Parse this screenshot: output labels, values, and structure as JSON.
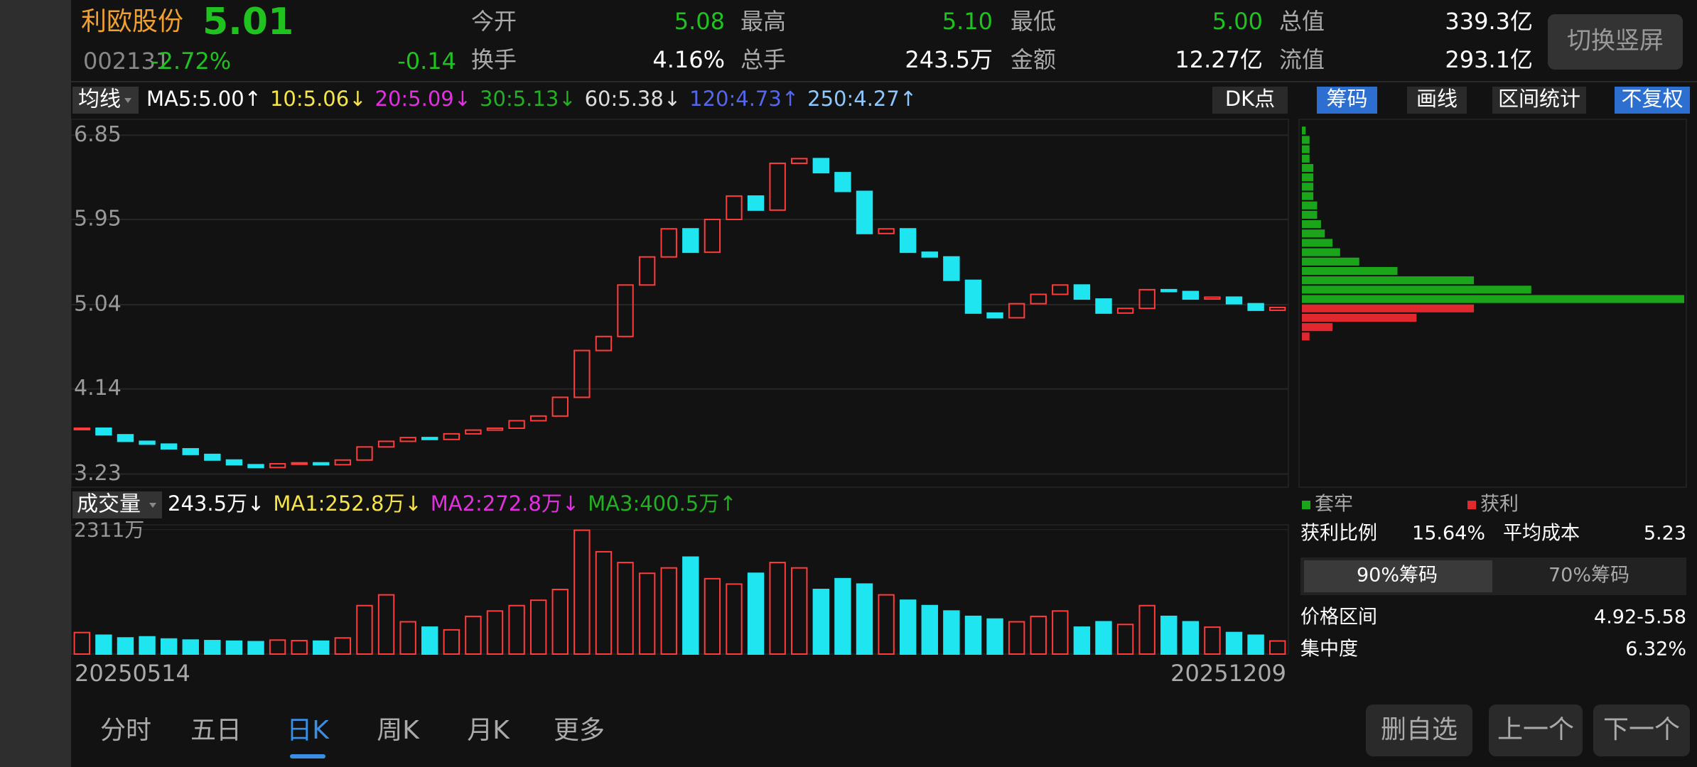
{
  "header": {
    "name": "利欧股份",
    "price": "5.01",
    "code": "002131",
    "change_pct": "-2.72%",
    "change": "-0.14",
    "stats": [
      {
        "label": "今开",
        "value": "5.08"
      },
      {
        "label": "最高",
        "value": "5.10"
      },
      {
        "label": "最低",
        "value": "5.00"
      },
      {
        "label": "总值",
        "value": "339.3亿"
      },
      {
        "label": "换手",
        "value": "4.16%"
      },
      {
        "label": "总手",
        "value": "243.5万"
      },
      {
        "label": "金额",
        "value": "12.27亿"
      },
      {
        "label": "流值",
        "value": "293.1亿"
      }
    ]
  },
  "orientation_button": "切换竖屏",
  "ma_bar": {
    "selector": "均线",
    "items": [
      {
        "text": "MA5:5.00↑",
        "color": "#ffffff"
      },
      {
        "text": "10:5.06↓",
        "color": "#f5e44a"
      },
      {
        "text": "20:5.09↓",
        "color": "#e030e0"
      },
      {
        "text": "30:5.13↓",
        "color": "#22b022"
      },
      {
        "text": "60:5.38↓",
        "color": "#dddddd"
      },
      {
        "text": "120:4.73↑",
        "color": "#5566ee"
      },
      {
        "text": "250:4.27↑",
        "color": "#8cc8ff"
      }
    ],
    "dk": "DK点",
    "tools": [
      "筹码",
      "画线",
      "区间统计",
      "不复权"
    ]
  },
  "volume_bar": {
    "selector": "成交量",
    "items": [
      {
        "text": "243.5万↓",
        "color": "#ffffff"
      },
      {
        "text": "MA1:252.8万↓",
        "color": "#f5e44a"
      },
      {
        "text": "MA2:272.8万↓",
        "color": "#e030e0"
      },
      {
        "text": "MA3:400.5万↑",
        "color": "#22b022"
      }
    ]
  },
  "chart_data": [
    {
      "type": "candlestick",
      "up_color": "#ff3b3b",
      "down_color": "#1ee5f0",
      "grid": true,
      "categories": [
        "20250514",
        null,
        null,
        null,
        null,
        null,
        null,
        null,
        null,
        null,
        null,
        null,
        null,
        null,
        null,
        null,
        null,
        null,
        null,
        null,
        null,
        null,
        null,
        null,
        null,
        null,
        null,
        null,
        null,
        null,
        null,
        null,
        null,
        null,
        null,
        null,
        null,
        null,
        null,
        null,
        null,
        null,
        null,
        null,
        null,
        null,
        null,
        null,
        null,
        null,
        null,
        null,
        null,
        null,
        null,
        "20251209"
      ],
      "values": [
        3.72,
        3.65,
        3.58,
        3.55,
        3.5,
        3.44,
        3.38,
        3.33,
        3.3,
        3.34,
        3.35,
        3.33,
        3.38,
        3.52,
        3.58,
        3.62,
        3.6,
        3.66,
        3.7,
        3.72,
        3.8,
        3.85,
        4.05,
        4.55,
        4.7,
        5.25,
        5.55,
        5.85,
        5.6,
        5.95,
        6.2,
        6.05,
        6.55,
        6.6,
        6.45,
        6.25,
        5.8,
        5.85,
        5.6,
        5.55,
        5.3,
        4.95,
        4.9,
        5.05,
        5.15,
        5.25,
        5.1,
        4.95,
        5.0,
        5.2,
        5.18,
        5.1,
        5.12,
        5.05,
        4.98,
        5.01
      ],
      "ylim": [
        3.09,
        7.02
      ],
      "yticks": [
        3.23,
        4.14,
        5.04,
        5.95,
        6.85
      ]
    },
    {
      "type": "bar",
      "values": [
        400,
        350,
        300,
        320,
        280,
        260,
        250,
        240,
        230,
        260,
        250,
        240,
        300,
        900,
        1100,
        600,
        500,
        450,
        700,
        800,
        900,
        1000,
        1200,
        2300,
        1900,
        1700,
        1500,
        1600,
        1800,
        1400,
        1300,
        1500,
        1700,
        1600,
        1200,
        1400,
        1300,
        1100,
        1000,
        900,
        800,
        700,
        650,
        600,
        700,
        800,
        500,
        600,
        550,
        900,
        700,
        600,
        500,
        400,
        350,
        243.5
      ],
      "ylim": [
        0,
        2400
      ],
      "yticks": [
        {
          "value": 2311,
          "label": "2311万"
        }
      ]
    },
    {
      "type": "barh",
      "series": [
        {
          "name": "套牢",
          "color": "#1aa51a"
        },
        {
          "name": "获利",
          "color": "#e0282e"
        }
      ],
      "y": [
        4.7,
        4.8,
        4.9,
        5.0,
        5.1,
        5.2,
        5.3,
        5.4,
        5.5,
        5.6,
        5.7,
        5.8,
        5.9,
        6.0,
        6.1,
        6.2,
        6.3,
        6.4,
        6.5,
        6.6,
        6.7,
        6.8,
        6.9
      ],
      "values": [
        2,
        8,
        30,
        45,
        100,
        60,
        45,
        25,
        15,
        10,
        8,
        6,
        5,
        4,
        4,
        3,
        3,
        3,
        3,
        2,
        2,
        2,
        1
      ],
      "xlim": [
        0,
        100
      ]
    }
  ],
  "chip_stats": {
    "profit_label": "获利比例",
    "profit": "15.64%",
    "avg_label": "平均成本",
    "avg": "5.23",
    "toggle": [
      "90%筹码",
      "70%筹码"
    ],
    "range_label": "价格区间",
    "range": "4.92-5.58",
    "conc_label": "集中度",
    "conc": "6.32%"
  },
  "tabs": [
    "分时",
    "五日",
    "日K",
    "周K",
    "月K",
    "更多"
  ],
  "buttons": [
    "删自选",
    "上一个",
    "下一个"
  ]
}
